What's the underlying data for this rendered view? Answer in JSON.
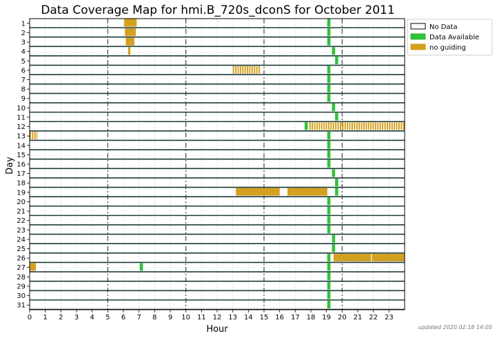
{
  "chart_data": {
    "type": "bar",
    "title": "Data Coverage Map for hmi.B_720s_dconS for October 2011",
    "xlabel": "Hour",
    "ylabel": "Day",
    "xlim": [
      0,
      24
    ],
    "ylim": [
      1,
      31
    ],
    "x_ticks": [
      "0",
      "1",
      "2",
      "3",
      "4",
      "5",
      "6",
      "7",
      "8",
      "9",
      "10",
      "11",
      "12",
      "13",
      "14",
      "15",
      "16",
      "17",
      "18",
      "19",
      "20",
      "21",
      "22",
      "23"
    ],
    "days": [
      "1",
      "2",
      "3",
      "4",
      "5",
      "6",
      "7",
      "8",
      "9",
      "10",
      "11",
      "12",
      "13",
      "14",
      "15",
      "16",
      "17",
      "18",
      "19",
      "20",
      "21",
      "22",
      "23",
      "24",
      "25",
      "26",
      "27",
      "28",
      "29",
      "30",
      "31"
    ],
    "dashed_hours": [
      5,
      10,
      15,
      20
    ],
    "legend": {
      "position": "outside-top-right",
      "entries": [
        {
          "label": "No Data",
          "color": "#ffffff"
        },
        {
          "label": "Data Available",
          "color": "#2ec23a"
        },
        {
          "label": "no guiding",
          "color": "#d4a020"
        }
      ]
    },
    "colors": {
      "no_data": "#ffffff",
      "data_available": "#2ec23a",
      "no_guiding": "#d4a020",
      "row_line": "#1e3a3a"
    },
    "series": [
      {
        "status": "data_available",
        "segments": [
          {
            "day": 1,
            "start": 19.05,
            "end": 19.25
          },
          {
            "day": 2,
            "start": 19.05,
            "end": 19.25
          },
          {
            "day": 3,
            "start": 19.05,
            "end": 19.25
          },
          {
            "day": 4,
            "start": 19.35,
            "end": 19.55
          },
          {
            "day": 5,
            "start": 19.55,
            "end": 19.75
          },
          {
            "day": 6,
            "start": 19.05,
            "end": 19.25
          },
          {
            "day": 7,
            "start": 19.05,
            "end": 19.25
          },
          {
            "day": 8,
            "start": 19.05,
            "end": 19.25
          },
          {
            "day": 9,
            "start": 19.05,
            "end": 19.25
          },
          {
            "day": 10,
            "start": 19.35,
            "end": 19.55
          },
          {
            "day": 11,
            "start": 19.55,
            "end": 19.75
          },
          {
            "day": 12,
            "start": 17.6,
            "end": 17.8
          },
          {
            "day": 13,
            "start": 19.05,
            "end": 19.25
          },
          {
            "day": 14,
            "start": 19.05,
            "end": 19.25
          },
          {
            "day": 15,
            "start": 19.05,
            "end": 19.25
          },
          {
            "day": 16,
            "start": 19.05,
            "end": 19.25
          },
          {
            "day": 17,
            "start": 19.35,
            "end": 19.55
          },
          {
            "day": 18,
            "start": 19.55,
            "end": 19.75
          },
          {
            "day": 19,
            "start": 19.55,
            "end": 19.75
          },
          {
            "day": 20,
            "start": 19.05,
            "end": 19.25
          },
          {
            "day": 21,
            "start": 19.05,
            "end": 19.25
          },
          {
            "day": 22,
            "start": 19.05,
            "end": 19.25
          },
          {
            "day": 23,
            "start": 19.05,
            "end": 19.25
          },
          {
            "day": 24,
            "start": 19.35,
            "end": 19.55
          },
          {
            "day": 25,
            "start": 19.35,
            "end": 19.55
          },
          {
            "day": 26,
            "start": 19.05,
            "end": 19.25
          },
          {
            "day": 27,
            "start": 7.05,
            "end": 7.25
          },
          {
            "day": 27,
            "start": 19.05,
            "end": 19.25
          },
          {
            "day": 28,
            "start": 19.05,
            "end": 19.25
          },
          {
            "day": 29,
            "start": 19.05,
            "end": 19.25
          },
          {
            "day": 30,
            "start": 19.05,
            "end": 19.25
          },
          {
            "day": 31,
            "start": 19.05,
            "end": 19.25
          }
        ]
      },
      {
        "status": "no_guiding",
        "segments": [
          {
            "day": 1,
            "start": 6.05,
            "end": 6.85
          },
          {
            "day": 2,
            "start": 6.1,
            "end": 6.8
          },
          {
            "day": 3,
            "start": 6.15,
            "end": 6.7
          },
          {
            "day": 4,
            "start": 6.3,
            "end": 6.45
          },
          {
            "day": 6,
            "start": 13.0,
            "end": 14.8,
            "striped": true
          },
          {
            "day": 12,
            "start": 17.9,
            "end": 24.0,
            "striped": true
          },
          {
            "day": 13,
            "start": 0.0,
            "end": 0.5,
            "striped": true
          },
          {
            "day": 19,
            "start": 13.2,
            "end": 16.0
          },
          {
            "day": 19,
            "start": 16.5,
            "end": 19.05
          },
          {
            "day": 26,
            "start": 19.45,
            "end": 21.85
          },
          {
            "day": 26,
            "start": 21.9,
            "end": 24.0
          },
          {
            "day": 27,
            "start": 0.0,
            "end": 0.4
          }
        ]
      }
    ]
  },
  "footer": {
    "updated": "updated 2020.02.18 14:05"
  }
}
